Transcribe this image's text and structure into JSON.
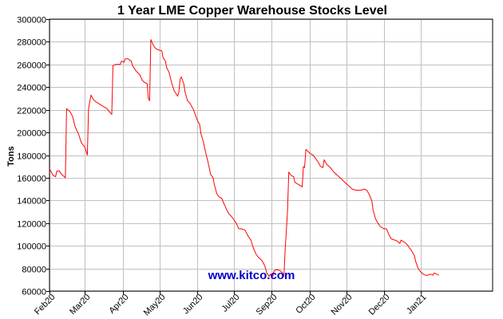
{
  "chart_data": {
    "type": "line",
    "title": "1 Year LME Copper Warehouse Stocks Level",
    "ylabel": "Tons",
    "xlabel": "",
    "ylim": [
      60000,
      300000
    ],
    "yticks": [
      60000,
      80000,
      100000,
      120000,
      140000,
      160000,
      180000,
      200000,
      220000,
      240000,
      260000,
      280000,
      300000
    ],
    "xlim": [
      0,
      363
    ],
    "xticks": [
      {
        "label": "Feb20",
        "day": 0
      },
      {
        "label": "Mar20",
        "day": 29
      },
      {
        "label": "Apr20",
        "day": 60
      },
      {
        "label": "May20",
        "day": 90
      },
      {
        "label": "Jun20",
        "day": 121
      },
      {
        "label": "Jul20",
        "day": 151
      },
      {
        "label": "Sep20",
        "day": 182
      },
      {
        "label": "Oct20",
        "day": 213
      },
      {
        "label": "Nov20",
        "day": 243
      },
      {
        "label": "Dec20",
        "day": 274
      },
      {
        "label": "Jan21",
        "day": 304
      }
    ],
    "grid": true,
    "line_color": "#ff0000",
    "watermark": "www.kitco.com",
    "series": [
      {
        "points": [
          [
            0,
            168000
          ],
          [
            3,
            162000
          ],
          [
            5,
            161000
          ],
          [
            6,
            166000
          ],
          [
            8,
            166000
          ],
          [
            10,
            163000
          ],
          [
            13,
            160000
          ],
          [
            14,
            221000
          ],
          [
            17,
            218000
          ],
          [
            19,
            214000
          ],
          [
            21,
            205000
          ],
          [
            24,
            198000
          ],
          [
            26,
            191000
          ],
          [
            29,
            187000
          ],
          [
            31,
            180000
          ],
          [
            32,
            221000
          ],
          [
            34,
            233000
          ],
          [
            36,
            229000
          ],
          [
            38,
            227000
          ],
          [
            41,
            225000
          ],
          [
            44,
            223000
          ],
          [
            47,
            221000
          ],
          [
            50,
            217000
          ],
          [
            51,
            216000
          ],
          [
            52,
            259000
          ],
          [
            54,
            260000
          ],
          [
            56,
            260000
          ],
          [
            58,
            260000
          ],
          [
            59,
            263000
          ],
          [
            61,
            262000
          ],
          [
            62,
            265000
          ],
          [
            64,
            265000
          ],
          [
            67,
            263000
          ],
          [
            68,
            259000
          ],
          [
            71,
            254000
          ],
          [
            74,
            251000
          ],
          [
            76,
            246000
          ],
          [
            78,
            244000
          ],
          [
            80,
            243000
          ],
          [
            81,
            230000
          ],
          [
            82,
            228000
          ],
          [
            83,
            282000
          ],
          [
            85,
            277000
          ],
          [
            87,
            274000
          ],
          [
            89,
            273000
          ],
          [
            92,
            272000
          ],
          [
            93,
            266000
          ],
          [
            95,
            263000
          ],
          [
            96,
            257000
          ],
          [
            98,
            253000
          ],
          [
            100,
            244000
          ],
          [
            102,
            237000
          ],
          [
            105,
            232000
          ],
          [
            106,
            236000
          ],
          [
            107,
            247000
          ],
          [
            108,
            249000
          ],
          [
            110,
            243000
          ],
          [
            111,
            236000
          ],
          [
            113,
            228000
          ],
          [
            115,
            226000
          ],
          [
            118,
            220000
          ],
          [
            121,
            211000
          ],
          [
            123,
            207000
          ],
          [
            124,
            199000
          ],
          [
            126,
            192000
          ],
          [
            128,
            182000
          ],
          [
            130,
            173000
          ],
          [
            132,
            163000
          ],
          [
            134,
            160000
          ],
          [
            135,
            154000
          ],
          [
            137,
            146000
          ],
          [
            139,
            143000
          ],
          [
            141,
            142000
          ],
          [
            143,
            137000
          ],
          [
            145,
            132000
          ],
          [
            147,
            128000
          ],
          [
            149,
            126000
          ],
          [
            151,
            123000
          ],
          [
            153,
            120000
          ],
          [
            155,
            115000
          ],
          [
            157,
            115000
          ],
          [
            160,
            114000
          ],
          [
            163,
            108000
          ],
          [
            165,
            105000
          ],
          [
            167,
            98000
          ],
          [
            169,
            93000
          ],
          [
            171,
            90000
          ],
          [
            174,
            87000
          ],
          [
            176,
            83000
          ],
          [
            177,
            80000
          ],
          [
            178,
            76000
          ],
          [
            180,
            73000
          ],
          [
            181,
            75000
          ],
          [
            183,
            73000
          ],
          [
            184,
            78000
          ],
          [
            186,
            79000
          ],
          [
            189,
            78000
          ],
          [
            191,
            76000
          ],
          [
            192,
            73000
          ],
          [
            193,
            96000
          ],
          [
            195,
            130000
          ],
          [
            196,
            165000
          ],
          [
            198,
            162000
          ],
          [
            200,
            161000
          ],
          [
            201,
            156000
          ],
          [
            204,
            154000
          ],
          [
            207,
            152000
          ],
          [
            208,
            170000
          ],
          [
            209,
            169000
          ],
          [
            210,
            185000
          ],
          [
            212,
            183000
          ],
          [
            214,
            181000
          ],
          [
            216,
            180000
          ],
          [
            218,
            177000
          ],
          [
            220,
            174000
          ],
          [
            222,
            170000
          ],
          [
            224,
            169000
          ],
          [
            225,
            176000
          ],
          [
            227,
            172000
          ],
          [
            230,
            169000
          ],
          [
            233,
            165000
          ],
          [
            236,
            162000
          ],
          [
            239,
            159000
          ],
          [
            242,
            156000
          ],
          [
            245,
            153000
          ],
          [
            248,
            150000
          ],
          [
            251,
            149000
          ],
          [
            255,
            149000
          ],
          [
            258,
            150000
          ],
          [
            260,
            149000
          ],
          [
            262,
            145000
          ],
          [
            264,
            140000
          ],
          [
            265,
            132000
          ],
          [
            267,
            124000
          ],
          [
            269,
            120000
          ],
          [
            271,
            117000
          ],
          [
            274,
            115000
          ],
          [
            276,
            115000
          ],
          [
            278,
            110000
          ],
          [
            280,
            106000
          ],
          [
            283,
            105000
          ],
          [
            285,
            104000
          ],
          [
            287,
            102000
          ],
          [
            288,
            105000
          ],
          [
            291,
            103000
          ],
          [
            293,
            101000
          ],
          [
            295,
            98000
          ],
          [
            297,
            95000
          ],
          [
            299,
            91000
          ],
          [
            300,
            86000
          ],
          [
            302,
            80000
          ],
          [
            304,
            77000
          ],
          [
            306,
            75000
          ],
          [
            308,
            74000
          ],
          [
            310,
            74000
          ],
          [
            312,
            75000
          ],
          [
            314,
            74000
          ],
          [
            315,
            76000
          ],
          [
            317,
            75000
          ],
          [
            319,
            74000
          ]
        ]
      }
    ]
  }
}
